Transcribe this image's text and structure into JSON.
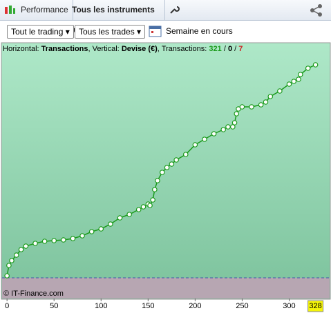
{
  "toolbar": {
    "tab": "Performance",
    "instruments": "Tous les instruments"
  },
  "filters": {
    "trading": "Tout le trading",
    "trades": "Tous les trades",
    "period": "Semaine en cours"
  },
  "chart_data": {
    "type": "scatter",
    "header": {
      "h_label": "Horizontal:",
      "h_value": "Transactions",
      "v_label": ", Vertical:",
      "v_value": "Devise (€)",
      "t_label": ", Transactions:",
      "total": 321,
      "sep1": "/",
      "zero": 0,
      "sep2": "/",
      "negative": 7
    },
    "copyright": "© IT-Finance.com",
    "x": [
      0,
      2,
      5,
      10,
      15,
      20,
      30,
      40,
      50,
      60,
      70,
      80,
      90,
      100,
      110,
      120,
      130,
      140,
      145,
      150,
      152,
      155,
      157,
      160,
      165,
      170,
      175,
      180,
      190,
      200,
      210,
      220,
      230,
      235,
      240,
      242,
      244,
      246,
      250,
      260,
      270,
      275,
      280,
      290,
      300,
      305,
      310,
      312,
      320,
      328
    ],
    "series": [
      {
        "name": "Transactions",
        "color": "#1a9a1a",
        "values": [
          3,
          18,
          25,
          33,
          41,
          46,
          50,
          53,
          54,
          55,
          57,
          61,
          67,
          71,
          78,
          87,
          92,
          99,
          103,
          107,
          105,
          113,
          128,
          141,
          153,
          160,
          165,
          171,
          179,
          193,
          201,
          209,
          215,
          219,
          219,
          225,
          238,
          245,
          248,
          248,
          251,
          255,
          263,
          271,
          281,
          285,
          288,
          295,
          304,
          309
        ]
      }
    ],
    "xlim": [
      -6,
      343
    ],
    "ylim": [
      -30,
      325
    ],
    "xticks": [
      0,
      50,
      100,
      150,
      200,
      250,
      300
    ],
    "x_highlight": 328,
    "zero_line": 0
  }
}
